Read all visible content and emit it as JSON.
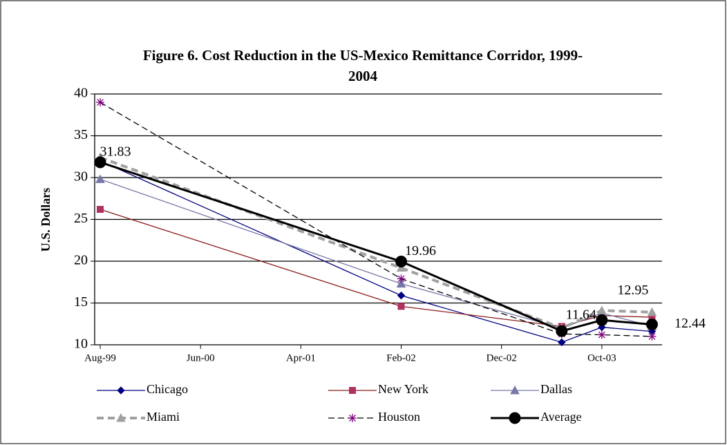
{
  "chart_data": {
    "type": "line",
    "title": "Figure 6.  Cost Reduction in the US-Mexico Remittance Corridor, 1999-2004",
    "y_label": "U.S. Dollars",
    "x": [
      "1999-08",
      "2002-02",
      "2003-06",
      "2003-10",
      "2004-03"
    ],
    "xlim": [
      "1999-08",
      "2004-04"
    ],
    "xticks": [
      {
        "value": "1999-08",
        "label": "Aug-99"
      },
      {
        "value": "2000-06",
        "label": "Jun-00"
      },
      {
        "value": "2001-04",
        "label": "Apr-01"
      },
      {
        "value": "2002-02",
        "label": "Feb-02"
      },
      {
        "value": "2002-12",
        "label": "Dec-02"
      },
      {
        "value": "2003-10",
        "label": "Oct-03"
      }
    ],
    "ylim": [
      10,
      40
    ],
    "yticks": [
      10,
      15,
      20,
      25,
      30,
      35,
      40
    ],
    "grid": true,
    "legend": "bottom",
    "series": [
      {
        "name": "Chicago",
        "color": "#000080",
        "marker": "diamond",
        "dash": false,
        "values": [
          32.0,
          15.9,
          10.3,
          12.1,
          11.6
        ]
      },
      {
        "name": "New York",
        "color": "#8b1a1a",
        "marker_color": "#b03060",
        "marker": "square",
        "dash": false,
        "values": [
          26.2,
          14.6,
          12.2,
          13.5,
          13.3
        ]
      },
      {
        "name": "Dallas",
        "color": "#7777aa",
        "marker": "triangle",
        "dash": false,
        "values": [
          29.8,
          17.3,
          12.0,
          13.8,
          12.2
        ]
      },
      {
        "name": "Miami",
        "color": "#a0a0a0",
        "marker": "triangle",
        "dash": true,
        "width": 4,
        "values": [
          32.4,
          19.2,
          12.0,
          14.1,
          13.9
        ]
      },
      {
        "name": "Houston",
        "color": "#000000",
        "marker_color": "#800080",
        "marker": "star",
        "dash": true,
        "values": [
          39.0,
          17.9,
          11.3,
          11.2,
          11.0
        ]
      },
      {
        "name": "Average",
        "color": "#000000",
        "marker": "circle",
        "dash": false,
        "width": 3,
        "show_values": true,
        "values": [
          31.83,
          19.96,
          11.64,
          12.95,
          12.44
        ]
      }
    ]
  }
}
